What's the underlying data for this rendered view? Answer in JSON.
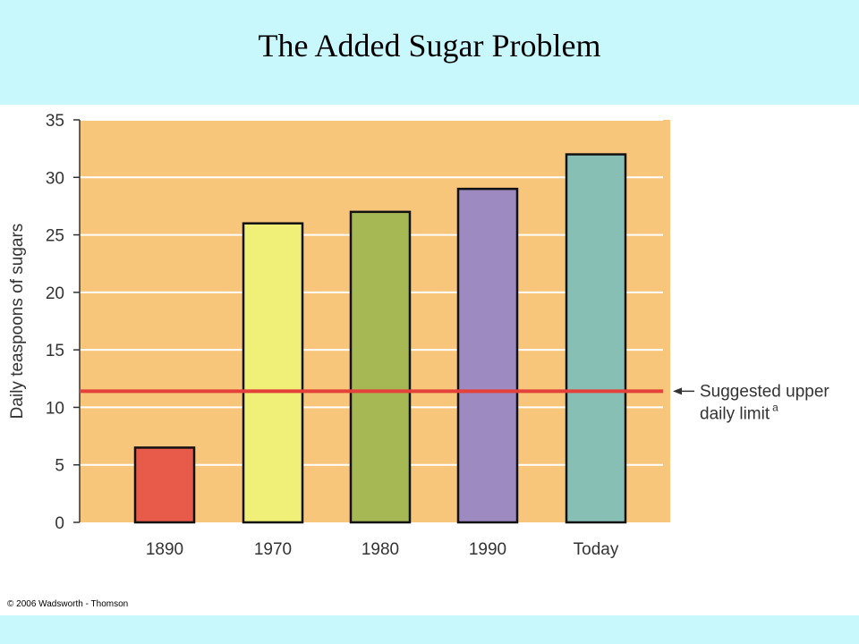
{
  "title": "The Added Sugar Problem",
  "copyright": "© 2006 Wadsworth - Thomson",
  "colors": {
    "header_bg": "#c8f8fc",
    "plot_bg": "#f8c67a",
    "grid": "#ffffff",
    "reference_line": "#e3413a"
  },
  "chart_data": {
    "type": "bar",
    "title": "The Added Sugar Problem",
    "xlabel": "",
    "ylabel": "Daily teaspoons of sugars",
    "ylim": [
      0,
      35
    ],
    "yticks": [
      "0",
      "5",
      "10",
      "15",
      "20",
      "25",
      "30",
      "35"
    ],
    "grid": true,
    "categories": [
      "1890",
      "1970",
      "1980",
      "1990",
      "Today"
    ],
    "values": [
      6.5,
      26,
      27,
      29,
      32
    ],
    "bar_colors": [
      "#e85a4a",
      "#f0ef78",
      "#a6b854",
      "#9d8ac0",
      "#88bfb5"
    ],
    "reference_line": {
      "value": 11.4,
      "label_line1": "Suggested upper",
      "label_line2": "daily limit",
      "label_sup": "a"
    }
  }
}
